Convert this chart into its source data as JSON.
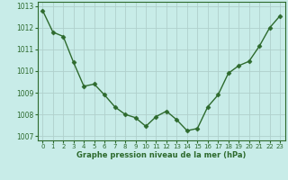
{
  "x": [
    0,
    1,
    2,
    3,
    4,
    5,
    6,
    7,
    8,
    9,
    10,
    11,
    12,
    13,
    14,
    15,
    16,
    17,
    18,
    19,
    20,
    21,
    22,
    23
  ],
  "y": [
    1012.8,
    1011.8,
    1011.6,
    1010.4,
    1009.3,
    1009.4,
    1008.9,
    1008.35,
    1008.0,
    1007.85,
    1007.45,
    1007.9,
    1008.15,
    1007.75,
    1007.25,
    1007.35,
    1008.35,
    1008.9,
    1009.9,
    1010.25,
    1010.45,
    1011.15,
    1012.0,
    1012.55
  ],
  "line_color": "#2d6a2d",
  "marker": "D",
  "marker_size": 2.5,
  "bg_color": "#c8ece8",
  "grid_color": "#b0d0cc",
  "xlabel": "Graphe pression niveau de la mer (hPa)",
  "xlabel_color": "#2d6a2d",
  "tick_color": "#2d6a2d",
  "ylim": [
    1006.8,
    1013.2
  ],
  "yticks": [
    1007,
    1008,
    1009,
    1010,
    1011,
    1012,
    1013
  ],
  "xticks": [
    0,
    1,
    2,
    3,
    4,
    5,
    6,
    7,
    8,
    9,
    10,
    11,
    12,
    13,
    14,
    15,
    16,
    17,
    18,
    19,
    20,
    21,
    22,
    23
  ],
  "linewidth": 1.0,
  "figsize": [
    3.2,
    2.0
  ],
  "dpi": 100
}
